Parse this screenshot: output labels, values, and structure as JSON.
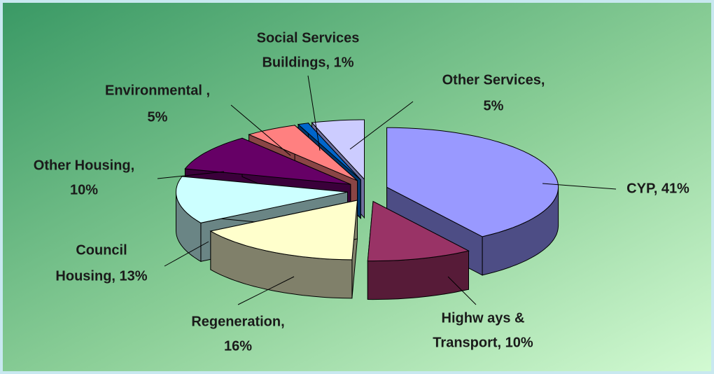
{
  "chart_data": {
    "type": "pie",
    "categories": [
      "CYP",
      "Highways & Transport",
      "Regeneration",
      "Council Housing",
      "Other Housing",
      "Environmental",
      "Social Services Buildings",
      "Other Services"
    ],
    "values": [
      41,
      10,
      16,
      13,
      10,
      5,
      1,
      5
    ],
    "value_labels": [
      [
        "CYP, 41%"
      ],
      [
        "Highw ays &",
        "Transport, 10%"
      ],
      [
        "Regeneration,",
        "16%"
      ],
      [
        "Council",
        "Housing, 13%"
      ],
      [
        "Other Housing,",
        "10%"
      ],
      [
        "Environmental ,",
        "5%"
      ],
      [
        "Social Services",
        "Buildings, 1%"
      ],
      [
        "Other Services,",
        "5%"
      ]
    ],
    "colors": [
      "#9999ff",
      "#993366",
      "#ffffcc",
      "#ccffff",
      "#660066",
      "#ff8080",
      "#0066cc",
      "#ccccff"
    ],
    "side_colors": [
      "#4d4d85",
      "#571b38",
      "#80806a",
      "#6a8585",
      "#3a003a",
      "#8a4545",
      "#00386e",
      "#7070a0"
    ]
  }
}
